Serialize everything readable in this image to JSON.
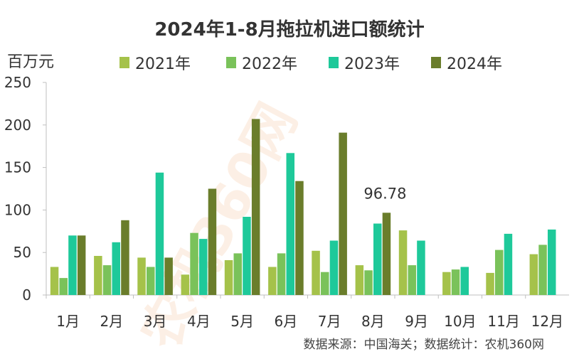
{
  "chart_data": {
    "type": "bar",
    "title": "2024年1-8月拖拉机进口额统计",
    "ylabel": "百万元",
    "xlabel": "",
    "ylim": [
      0,
      250
    ],
    "yticks": [
      "250",
      "200",
      "150",
      "100",
      "50",
      "0"
    ],
    "ytick_values": [
      250,
      200,
      150,
      100,
      50,
      0
    ],
    "grid": false,
    "legend_position": "top",
    "categories": [
      "1月",
      "2月",
      "3月",
      "4月",
      "5月",
      "6月",
      "7月",
      "8月",
      "9月",
      "10月",
      "11月",
      "12月"
    ],
    "series": [
      {
        "name": "2021年",
        "color": "#a5c24a",
        "values": [
          33,
          46,
          44,
          24,
          41,
          33,
          52,
          35,
          76,
          27,
          26,
          48
        ]
      },
      {
        "name": "2022年",
        "color": "#7ac25a",
        "values": [
          20,
          35,
          33,
          73,
          49,
          49,
          27,
          29,
          35,
          30,
          53,
          59
        ]
      },
      {
        "name": "2023年",
        "color": "#1ec99a",
        "values": [
          70,
          62,
          144,
          66,
          92,
          167,
          64,
          84,
          64,
          33,
          72,
          77
        ]
      },
      {
        "name": "2024年",
        "color": "#6a7d2b",
        "values": [
          70,
          88,
          44,
          125,
          207,
          134,
          191,
          96.78,
          null,
          null,
          null,
          null
        ]
      }
    ],
    "annotations": [
      {
        "text": "96.78",
        "series": "2024年",
        "category": "8月",
        "value": 96.78
      }
    ],
    "source": "数据来源：中国海关；数据统计：农机360网",
    "watermark": "农机360网"
  }
}
